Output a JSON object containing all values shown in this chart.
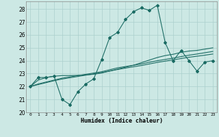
{
  "xlabel": "Humidex (Indice chaleur)",
  "background_color": "#cce8e4",
  "grid_color": "#aacfcc",
  "line_color": "#1a6b63",
  "xlim": [
    -0.5,
    23.5
  ],
  "ylim": [
    20.0,
    28.6
  ],
  "yticks": [
    20,
    21,
    22,
    23,
    24,
    25,
    26,
    27,
    28
  ],
  "xticks": [
    0,
    1,
    2,
    3,
    4,
    5,
    6,
    7,
    8,
    9,
    10,
    11,
    12,
    13,
    14,
    15,
    16,
    17,
    18,
    19,
    20,
    21,
    22,
    23
  ],
  "series": {
    "main": [
      22.0,
      22.7,
      22.7,
      22.8,
      21.0,
      20.6,
      21.6,
      22.2,
      22.6,
      24.1,
      25.8,
      26.2,
      27.2,
      27.8,
      28.1,
      27.9,
      28.3,
      25.4,
      24.0,
      24.8,
      24.0,
      23.2,
      23.9,
      24.0
    ],
    "line2": [
      22.0,
      22.5,
      22.7,
      22.8,
      22.85,
      22.85,
      22.87,
      22.9,
      22.95,
      23.05,
      23.2,
      23.35,
      23.5,
      23.65,
      23.85,
      24.05,
      24.25,
      24.4,
      24.5,
      24.65,
      24.75,
      24.8,
      24.9,
      25.0
    ],
    "line3": [
      22.0,
      22.2,
      22.35,
      22.5,
      22.65,
      22.75,
      22.85,
      22.95,
      23.05,
      23.15,
      23.3,
      23.45,
      23.55,
      23.65,
      23.75,
      23.88,
      24.0,
      24.1,
      24.2,
      24.32,
      24.43,
      24.52,
      24.62,
      24.72
    ],
    "line4": [
      22.0,
      22.15,
      22.3,
      22.45,
      22.58,
      22.68,
      22.78,
      22.88,
      22.98,
      23.08,
      23.2,
      23.32,
      23.43,
      23.53,
      23.63,
      23.75,
      23.87,
      23.97,
      24.07,
      24.17,
      24.27,
      24.35,
      24.43,
      24.52
    ]
  }
}
